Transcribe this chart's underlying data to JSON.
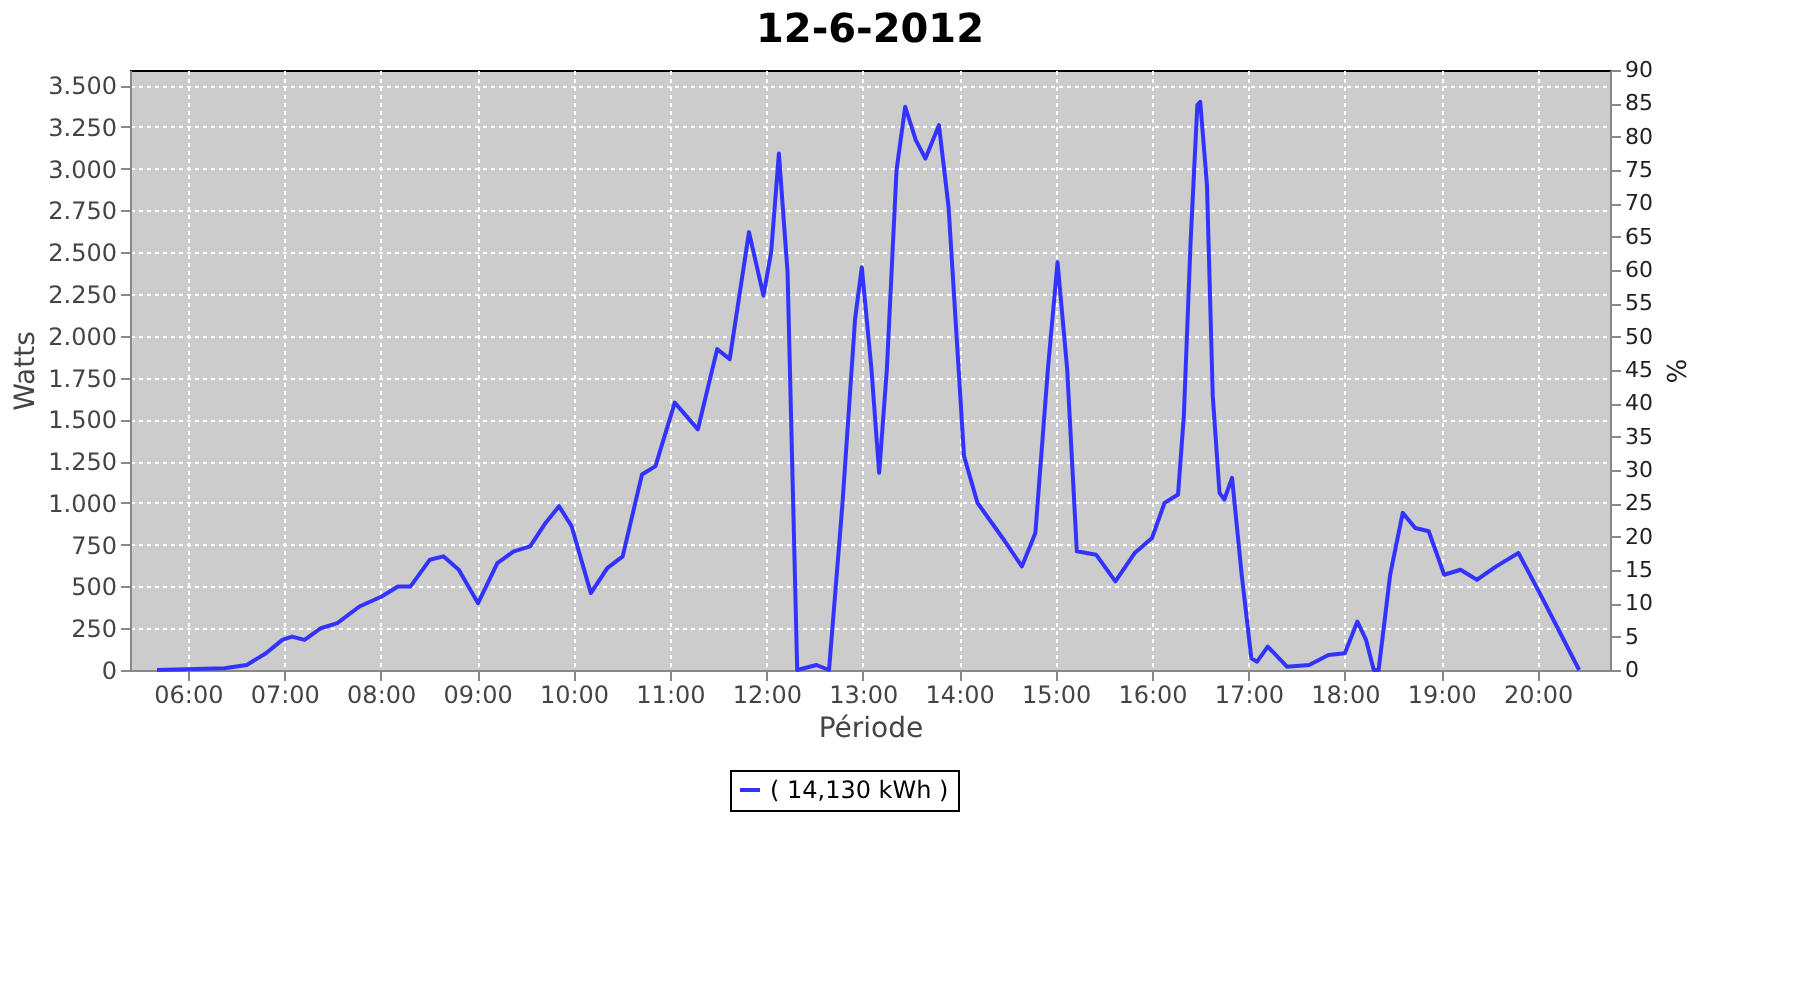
{
  "chart_data": {
    "type": "line",
    "title": "12-6-2012",
    "xlabel": "Période",
    "ylabel": "Watts",
    "y2label": "%",
    "xlim": [
      5.4,
      20.75
    ],
    "xticks": [
      {
        "value": 6,
        "label": "06:00"
      },
      {
        "value": 7,
        "label": "07:00"
      },
      {
        "value": 8,
        "label": "08:00"
      },
      {
        "value": 9,
        "label": "09:00"
      },
      {
        "value": 10,
        "label": "10:00"
      },
      {
        "value": 11,
        "label": "11:00"
      },
      {
        "value": 12,
        "label": "12:00"
      },
      {
        "value": 13,
        "label": "13:00"
      },
      {
        "value": 14,
        "label": "14:00"
      },
      {
        "value": 15,
        "label": "15:00"
      },
      {
        "value": 16,
        "label": "16:00"
      },
      {
        "value": 17,
        "label": "17:00"
      },
      {
        "value": 18,
        "label": "18:00"
      },
      {
        "value": 19,
        "label": "19:00"
      },
      {
        "value": 20,
        "label": "20:00"
      }
    ],
    "ylim": [
      0,
      3590
    ],
    "yticks": [
      0,
      250,
      500,
      750,
      {
        "value": 1000,
        "label": "1.000"
      },
      {
        "value": 1250,
        "label": "1.250"
      },
      {
        "value": 1500,
        "label": "1.500"
      },
      {
        "value": 1750,
        "label": "1.750"
      },
      {
        "value": 2000,
        "label": "2.000"
      },
      {
        "value": 2250,
        "label": "2.250"
      },
      {
        "value": 2500,
        "label": "2.500"
      },
      {
        "value": 2750,
        "label": "2.750"
      },
      {
        "value": 3000,
        "label": "3.000"
      },
      {
        "value": 3250,
        "label": "3.250"
      },
      {
        "value": 3500,
        "label": "3.500"
      }
    ],
    "y2lim": [
      0,
      90
    ],
    "y2ticks": [
      0,
      5,
      10,
      15,
      20,
      25,
      30,
      35,
      40,
      45,
      50,
      55,
      60,
      65,
      70,
      75,
      80,
      85,
      90
    ],
    "grid": true,
    "legend": "bottom",
    "marker": "none",
    "line_style": "solid",
    "series": [
      {
        "name": "( 14,130 kWh )",
        "color": "#3333ff",
        "x": [
          5.68,
          6.38,
          6.61,
          6.81,
          6.98,
          7.08,
          7.21,
          7.38,
          7.55,
          7.78,
          8.01,
          8.18,
          8.31,
          8.51,
          8.65,
          8.81,
          9.01,
          9.21,
          9.38,
          9.55,
          9.71,
          9.85,
          9.98,
          10.18,
          10.35,
          10.51,
          10.71,
          10.85,
          11.05,
          11.29,
          11.49,
          11.62,
          11.82,
          11.97,
          12.05,
          12.13,
          12.22,
          12.32,
          12.52,
          12.65,
          12.79,
          12.92,
          12.99,
          13.09,
          13.17,
          13.25,
          13.35,
          13.44,
          13.55,
          13.65,
          13.79,
          13.89,
          14.05,
          14.19,
          14.45,
          14.65,
          14.79,
          14.92,
          15.02,
          15.12,
          15.22,
          15.32,
          15.42,
          15.62,
          15.82,
          16.0,
          16.13,
          16.27,
          16.33,
          16.4,
          16.47,
          16.5,
          16.57,
          16.63,
          16.7,
          16.75,
          16.83,
          16.93,
          17.03,
          17.09,
          17.2,
          17.4,
          17.63,
          17.83,
          18.0,
          18.13,
          18.22,
          18.3,
          18.35,
          18.47,
          18.6,
          18.73,
          18.87,
          19.03,
          19.2,
          19.37,
          19.57,
          19.8,
          20.03,
          20.43
        ],
        "values": [
          0,
          10,
          30,
          100,
          180,
          200,
          180,
          250,
          280,
          380,
          440,
          500,
          500,
          660,
          680,
          600,
          400,
          640,
          710,
          740,
          880,
          980,
          860,
          460,
          610,
          680,
          1170,
          1220,
          1600,
          1440,
          1920,
          1860,
          2620,
          2240,
          2500,
          3090,
          2380,
          0,
          30,
          0,
          1000,
          2100,
          2410,
          1800,
          1180,
          1800,
          2990,
          3370,
          3170,
          3060,
          3260,
          2770,
          1280,
          1000,
          790,
          620,
          820,
          1800,
          2440,
          1800,
          710,
          700,
          690,
          530,
          700,
          790,
          1000,
          1050,
          1520,
          2560,
          3380,
          3400,
          2900,
          1640,
          1060,
          1020,
          1150,
          570,
          70,
          50,
          140,
          20,
          30,
          90,
          100,
          290,
          180,
          0,
          0,
          570,
          940,
          850,
          830,
          570,
          600,
          540,
          620,
          700,
          450,
          0
        ]
      }
    ]
  }
}
